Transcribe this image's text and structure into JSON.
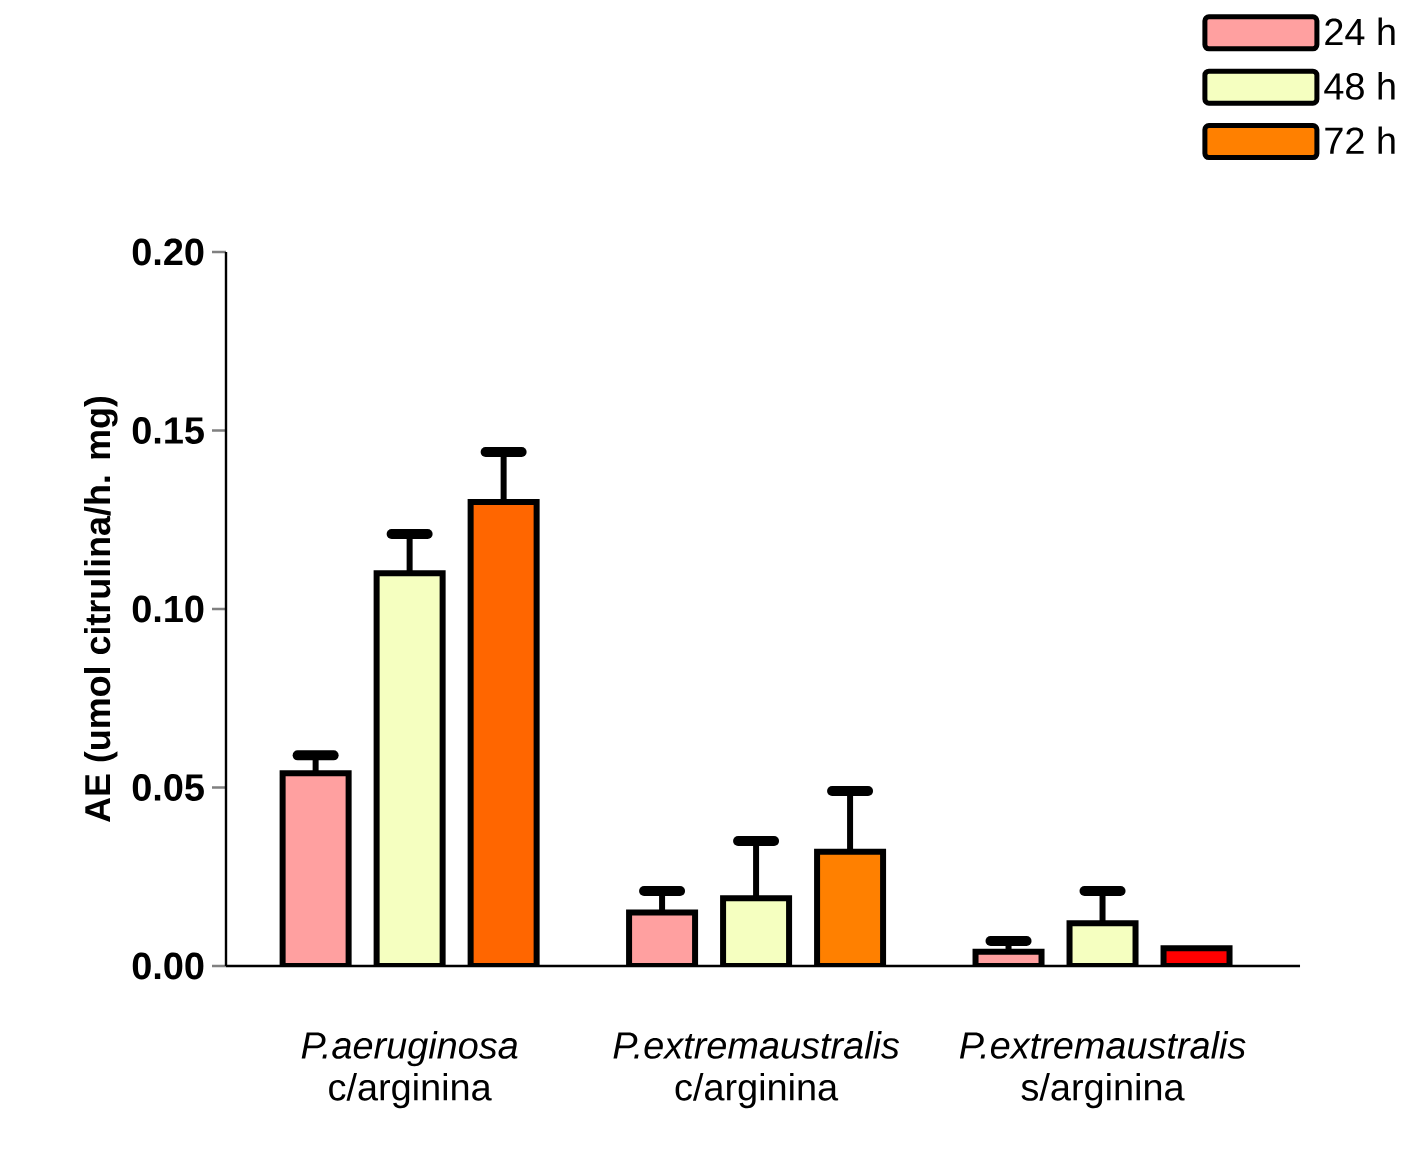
{
  "chart_data": {
    "type": "bar",
    "ylabel": "AE (umol citrulina/h. mg)",
    "categories": [
      "*P.aeruginosa* c/arginina",
      "*P.extremaustralis* c/arginina",
      "*P.extremaustralis* s/arginina"
    ],
    "series": [
      {
        "name": "24 h",
        "color": "#ffa0a0",
        "values": [
          0.054,
          0.015,
          0.004
        ],
        "errors": [
          0.005,
          0.006,
          0.003
        ]
      },
      {
        "name": "48 h",
        "color": "#f5ffc0",
        "values": [
          0.11,
          0.019,
          0.012
        ],
        "errors": [
          0.011,
          0.016,
          0.009
        ]
      },
      {
        "name": "72 h",
        "color": "#ff8000",
        "colors": [
          "#ff6600",
          "#ff8000",
          "#ff0000"
        ],
        "values": [
          0.13,
          0.032,
          0.005
        ],
        "errors": [
          0.014,
          0.017,
          null
        ]
      }
    ],
    "ylim": [
      0,
      0.2
    ],
    "yticks": [
      {
        "value": 0,
        "label": "0.00"
      },
      {
        "value": 0.05,
        "label": "0.05"
      },
      {
        "value": 0.1,
        "label": "0.10"
      },
      {
        "value": 0.15,
        "label": "0.15"
      },
      {
        "value": 0.2,
        "label": "0.20"
      }
    ],
    "grid": false,
    "legend": "top right"
  }
}
